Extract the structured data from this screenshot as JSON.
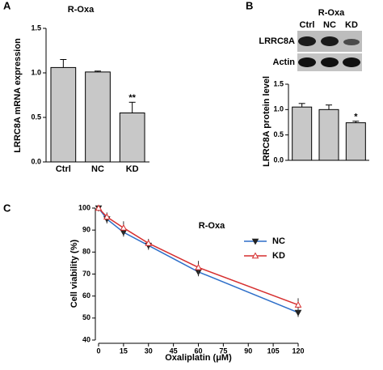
{
  "chart_data": [
    {
      "type": "bar",
      "panel_label": "A",
      "title": "R-Oxa",
      "y_label": "LRRC8A mRNA expression",
      "categories": [
        "Ctrl",
        "NC",
        "KD"
      ],
      "values": [
        1.06,
        1.01,
        0.55
      ],
      "errors": [
        0.09,
        0.01,
        0.12
      ],
      "significance": [
        null,
        null,
        "**"
      ],
      "color": "#c8c8c8",
      "ylim": [
        0,
        1.5
      ],
      "yticks": [
        {
          "value": 0,
          "label": "0.0"
        },
        {
          "value": 0.5,
          "label": "0.5"
        },
        {
          "value": 1,
          "label": "1.0"
        },
        {
          "value": 1.5,
          "label": "1.5"
        }
      ]
    },
    {
      "type": "bar",
      "panel_label": "B",
      "title": "R-Oxa",
      "y_label": "LRRC8A protein level",
      "blot": {
        "lanes": [
          "Ctrl",
          "NC",
          "KD"
        ],
        "rows": [
          "LRRC8A",
          "Actin"
        ]
      },
      "categories": [
        null,
        null,
        null
      ],
      "values": [
        1.05,
        1.0,
        0.74
      ],
      "errors": [
        0.07,
        0.09,
        0.03
      ],
      "significance": [
        null,
        null,
        "*"
      ],
      "color": "#c8c8c8",
      "ylim": [
        0,
        1.5
      ],
      "yticks": [
        {
          "value": 0,
          "label": "0.0"
        },
        {
          "value": 0.5,
          "label": "0.5"
        },
        {
          "value": 1,
          "label": "1.0"
        },
        {
          "value": 1.5,
          "label": "1.5"
        }
      ]
    },
    {
      "type": "line",
      "panel_label": "C",
      "title": "R-Oxa",
      "x_label": "Oxaliplatin (μM)",
      "y_label": "Cell viability (%)",
      "x": [
        0,
        5,
        15,
        30,
        60,
        120
      ],
      "series": [
        {
          "name": "NC",
          "color": "#2e6fc9",
          "marker": "triangle-down",
          "filled": true,
          "values": [
            100,
            95,
            89,
            83,
            71,
            52.5
          ],
          "errors": [
            0,
            2,
            2,
            2,
            2,
            2
          ]
        },
        {
          "name": "KD",
          "color": "#d62f2f",
          "marker": "triangle-up",
          "filled": false,
          "values": [
            100,
            96,
            91,
            84,
            73,
            56
          ],
          "errors": [
            0,
            2,
            3,
            2,
            3,
            3
          ]
        }
      ],
      "xlim": [
        0,
        120
      ],
      "xticks": [
        0,
        15,
        30,
        45,
        60,
        75,
        90,
        105,
        120
      ],
      "ylim": [
        40,
        100
      ],
      "yticks": [
        40,
        50,
        60,
        70,
        80,
        90,
        100
      ],
      "legend": "right"
    }
  ]
}
